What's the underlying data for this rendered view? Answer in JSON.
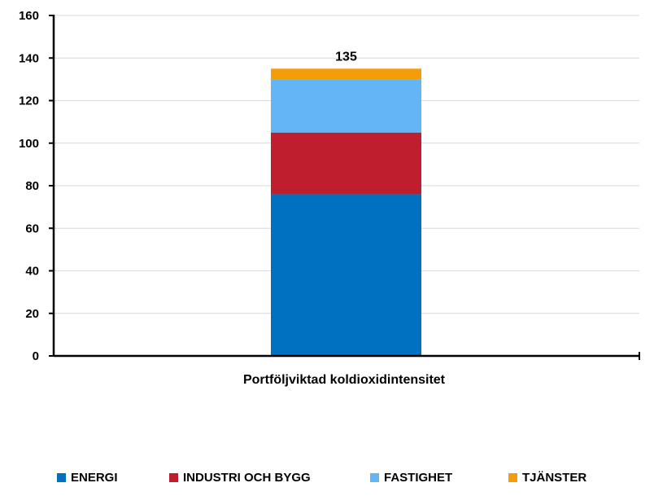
{
  "chart_data": {
    "type": "bar",
    "stacked": true,
    "categories": [
      "Portföljviktad koldioxidintensitet"
    ],
    "series": [
      {
        "name": "ENERGI",
        "values": [
          76
        ],
        "color": "#0070C0"
      },
      {
        "name": "INDUSTRI OCH BYGG",
        "values": [
          29
        ],
        "color": "#BE1E2D"
      },
      {
        "name": "FASTIGHET",
        "values": [
          25
        ],
        "color": "#63B5F6"
      },
      {
        "name": "TJÄNSTER",
        "values": [
          5
        ],
        "color": "#F59C0B"
      }
    ],
    "total_label": "135",
    "ylim": [
      0,
      160
    ],
    "yticks": [
      "0",
      "20",
      "40",
      "60",
      "80",
      "100",
      "120",
      "140",
      "160"
    ],
    "grid": true,
    "legend": "bottom"
  }
}
